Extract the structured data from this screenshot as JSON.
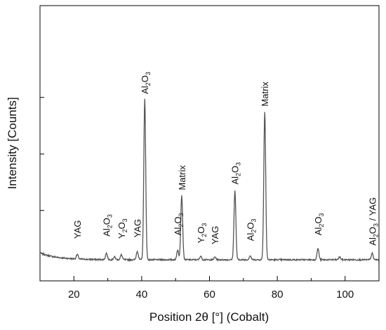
{
  "chart_data": {
    "type": "line",
    "xlabel": "Position 2θ [°] (Cobalt)",
    "ylabel": "Intensity [Counts]",
    "xlim": [
      10,
      110
    ],
    "ylim": [
      0,
      1000
    ],
    "x_ticks": [
      20,
      40,
      60,
      80,
      100
    ],
    "x_tick_labels": [
      "20",
      "40",
      "60",
      "80",
      "100"
    ],
    "y_ticks": [
      250,
      500,
      750
    ],
    "grid": false,
    "line_color": "#555555",
    "baseline": 40,
    "peaks": [
      {
        "x": 21.0,
        "y": 60
      },
      {
        "x": 29.6,
        "y": 68
      },
      {
        "x": 32.0,
        "y": 52
      },
      {
        "x": 34.0,
        "y": 62
      },
      {
        "x": 38.7,
        "y": 78
      },
      {
        "x": 40.9,
        "y": 750
      },
      {
        "x": 50.6,
        "y": 82
      },
      {
        "x": 51.8,
        "y": 325
      },
      {
        "x": 57.4,
        "y": 56
      },
      {
        "x": 61.6,
        "y": 52
      },
      {
        "x": 67.5,
        "y": 345
      },
      {
        "x": 72.0,
        "y": 58
      },
      {
        "x": 76.3,
        "y": 694
      },
      {
        "x": 92.0,
        "y": 90
      },
      {
        "x": 98.4,
        "y": 52
      },
      {
        "x": 108.0,
        "y": 68
      }
    ],
    "annotations": [
      {
        "base": "YAG",
        "x": 21.0,
        "y": 125
      },
      {
        "base": "Al",
        "sub1": "2",
        "mid": "O",
        "sub2": "3",
        "x": 29.6,
        "y": 135
      },
      {
        "base": "Y",
        "sub1": "2",
        "mid": "O",
        "sub2": "3",
        "x": 34.0,
        "y": 125
      },
      {
        "base": "YAG",
        "x": 38.7,
        "y": 130
      },
      {
        "base": "Al",
        "sub1": "2",
        "mid": "O",
        "sub2": "3",
        "x": 40.9,
        "y": 765
      },
      {
        "base": "Al",
        "sub1": "2",
        "mid": "O",
        "sub2": "3",
        "x": 50.6,
        "y": 140
      },
      {
        "base": "Matrix",
        "x": 51.8,
        "y": 340
      },
      {
        "base": "Y",
        "sub1": "2",
        "mid": "O",
        "sub2": "3",
        "x": 57.4,
        "y": 105
      },
      {
        "base": "YAG",
        "x": 61.6,
        "y": 100
      },
      {
        "base": "Al",
        "sub1": "2",
        "mid": "O",
        "sub2": "3",
        "x": 67.5,
        "y": 365
      },
      {
        "base": "Al",
        "sub1": "2",
        "mid": "O",
        "sub2": "3",
        "x": 72.0,
        "y": 115
      },
      {
        "base": "Matrix",
        "x": 76.3,
        "y": 710
      },
      {
        "base": "Al",
        "sub1": "2",
        "mid": "O",
        "sub2": "3",
        "x": 92.0,
        "y": 140
      },
      {
        "base": "Al",
        "sub1": "2",
        "mid": "O",
        "sub2": "3",
        "tail": " / YAG",
        "x": 108.0,
        "y": 95
      }
    ]
  }
}
